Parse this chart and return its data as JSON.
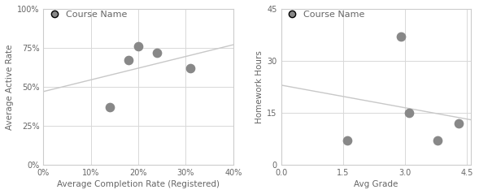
{
  "chart1": {
    "scatter_x": [
      0.14,
      0.18,
      0.2,
      0.24,
      0.31
    ],
    "scatter_y": [
      0.37,
      0.67,
      0.76,
      0.72,
      0.62
    ],
    "trendline_x": [
      0.0,
      0.4
    ],
    "trendline_y": [
      0.47,
      0.77
    ],
    "xlabel": "Average Completion Rate (Registered)",
    "ylabel": "Average Active Rate",
    "xlim": [
      0.0,
      0.4
    ],
    "ylim": [
      0.0,
      1.0
    ],
    "xticks": [
      0.0,
      0.1,
      0.2,
      0.3,
      0.4
    ],
    "yticks": [
      0.0,
      0.25,
      0.5,
      0.75,
      1.0
    ],
    "legend_label": "Course Name"
  },
  "chart2": {
    "scatter_x": [
      1.6,
      2.9,
      3.1,
      3.8,
      4.3
    ],
    "scatter_y": [
      7.0,
      37.0,
      15.0,
      7.0,
      12.0
    ],
    "trendline_x": [
      0.0,
      4.6
    ],
    "trendline_y": [
      23.0,
      13.0
    ],
    "xlabel": "Avg Grade",
    "ylabel": "Homework Hours",
    "xlim": [
      0.0,
      4.6
    ],
    "ylim": [
      0.0,
      45.0
    ],
    "xticks": [
      0.0,
      1.5,
      3.0,
      4.5
    ],
    "yticks": [
      0,
      15,
      30,
      45
    ],
    "legend_label": "Course Name"
  },
  "dot_color": "#888888",
  "trendline_color": "#c8c8c8",
  "grid_color": "#d8d8d8",
  "bg_color": "#ffffff",
  "border_color": "#cccccc",
  "outer_bg": "#ffffff",
  "dot_size": 55,
  "font_color": "#666666",
  "axis_label_fontsize": 7.5,
  "tick_fontsize": 7,
  "legend_fontsize": 8
}
